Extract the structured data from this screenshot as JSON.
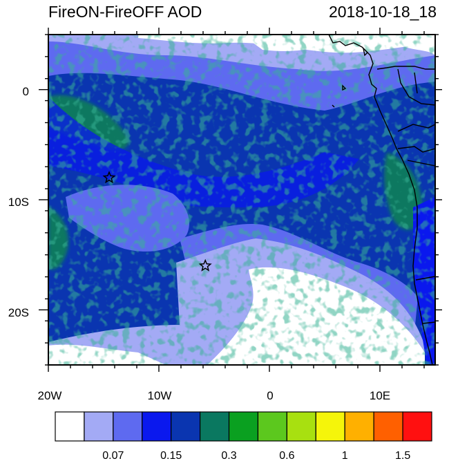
{
  "title": "FireON-FireOFF AOD",
  "timestamp": "2018-10-18_18",
  "map": {
    "lat_labels": [
      "0",
      "10S",
      "20S"
    ],
    "lon_labels": [
      "20W",
      "10W",
      "0",
      "10E"
    ],
    "markers": [
      {
        "name": "station-star",
        "lon": -14.5,
        "lat": -8
      },
      {
        "name": "station-star",
        "lon": -5.8,
        "lat": -16
      }
    ]
  },
  "colorbar": {
    "colors": [
      "#ffffff",
      "#a3aaf5",
      "#5e6af0",
      "#0a18ee",
      "#0a35b0",
      "#0a7860",
      "#0aa020",
      "#5cc81e",
      "#a8e010",
      "#f5f50a",
      "#ffb000",
      "#ff6000",
      "#ff1010"
    ],
    "labels": [
      "0.07",
      "0.15",
      "0.3",
      "0.6",
      "1",
      "1.5"
    ]
  }
}
